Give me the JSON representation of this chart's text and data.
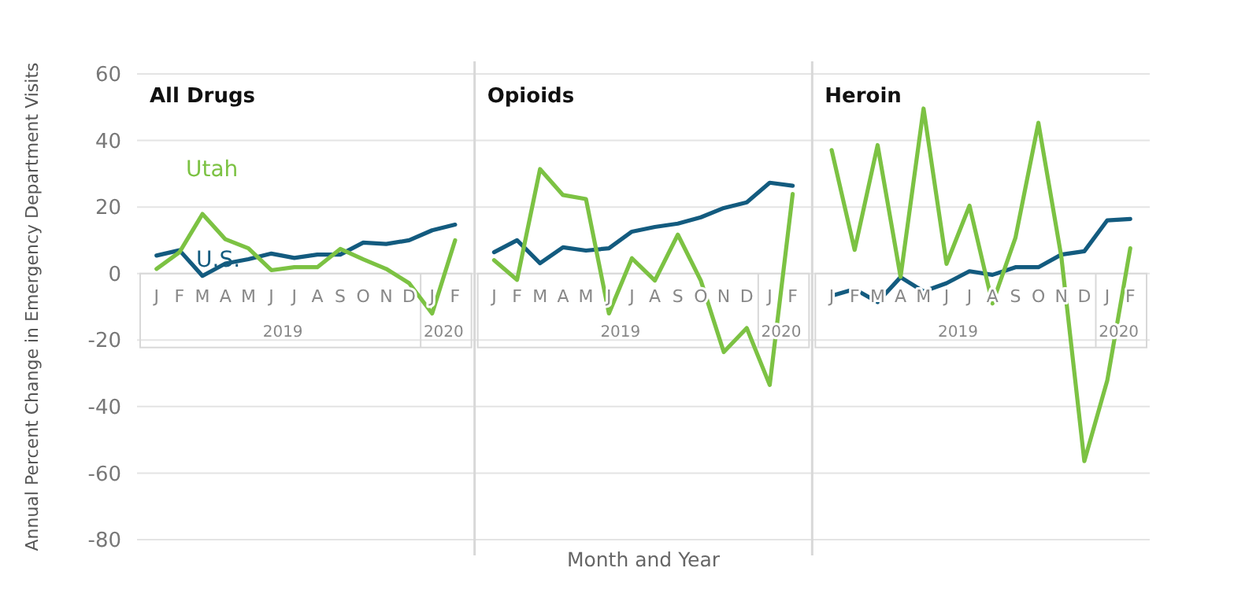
{
  "chart_data": [
    {
      "type": "line",
      "title": "All Drugs",
      "ylabel": "Annual Percent Change in Emergency Department Visits",
      "categories": [
        "J",
        "F",
        "M",
        "A",
        "M",
        "J",
        "J",
        "A",
        "S",
        "O",
        "N",
        "D",
        "J",
        "F"
      ],
      "annotations": [
        "2019",
        "2020"
      ],
      "ylim": [
        -80,
        60
      ],
      "yticks": [
        -80,
        -60,
        -40,
        -20,
        0,
        20,
        40,
        60
      ],
      "grid": "y",
      "legend": false,
      "series": [
        {
          "name": "U.S.",
          "color": "#135b7f",
          "values": [
            5.4,
            7,
            -0.7,
            3,
            4.3,
            6,
            4.7,
            5.7,
            5.7,
            9.3,
            8.9,
            10,
            13,
            14.7
          ]
        },
        {
          "name": "Utah",
          "color": "#7cc243",
          "values": [
            1.4,
            6.4,
            17.9,
            10.3,
            7.6,
            1,
            1.9,
            1.9,
            7.4,
            4.3,
            1.4,
            -2.9,
            -12,
            10
          ]
        }
      ]
    },
    {
      "type": "line",
      "title": "Opioids",
      "xlabel": "Month and Year",
      "categories": [
        "J",
        "F",
        "M",
        "A",
        "M",
        "J",
        "J",
        "A",
        "S",
        "O",
        "N",
        "D",
        "J",
        "F"
      ],
      "annotations": [
        "2019",
        "2020"
      ],
      "ylim": [
        -80,
        60
      ],
      "yticks": [
        -80,
        -60,
        -40,
        -20,
        0,
        20,
        40,
        60
      ],
      "grid": "y",
      "legend": false,
      "tick_labels": "x",
      "series": [
        {
          "color": "#135b7f",
          "values": [
            6.4,
            10,
            3.1,
            7.9,
            6.9,
            7.6,
            12.6,
            14,
            15,
            16.9,
            19.7,
            21.4,
            27.3,
            26.4
          ]
        },
        {
          "color": "#7cc243",
          "values": [
            4,
            -1.9,
            31.4,
            23.6,
            22.4,
            -12,
            4.6,
            -2.1,
            11.7,
            -2.1,
            -23.6,
            -16.4,
            -33.5,
            23.9
          ]
        }
      ]
    },
    {
      "type": "line",
      "title": "Heroin",
      "categories": [
        "J",
        "F",
        "M",
        "A",
        "M",
        "J",
        "J",
        "A",
        "S",
        "O",
        "N",
        "D",
        "J",
        "F"
      ],
      "annotations": [
        "2019",
        "2020"
      ],
      "ylim": [
        -80,
        60
      ],
      "yticks": [
        -80,
        -60,
        -40,
        -20,
        0,
        20,
        40,
        60
      ],
      "grid": "y",
      "legend": false,
      "tick_labels": "x",
      "series": [
        {
          "color": "#135b7f",
          "values": [
            -6.7,
            -4.7,
            -8.6,
            -1.1,
            -5.4,
            -2.9,
            0.7,
            -0.4,
            1.9,
            1.9,
            5.7,
            6.7,
            16,
            16.4
          ]
        },
        {
          "color": "#7cc243",
          "values": [
            37.1,
            7.1,
            38.6,
            -1,
            49.6,
            2.9,
            20.4,
            -9,
            10.7,
            45.3,
            5,
            -56.4,
            -32.1,
            7.6
          ]
        }
      ]
    }
  ]
}
